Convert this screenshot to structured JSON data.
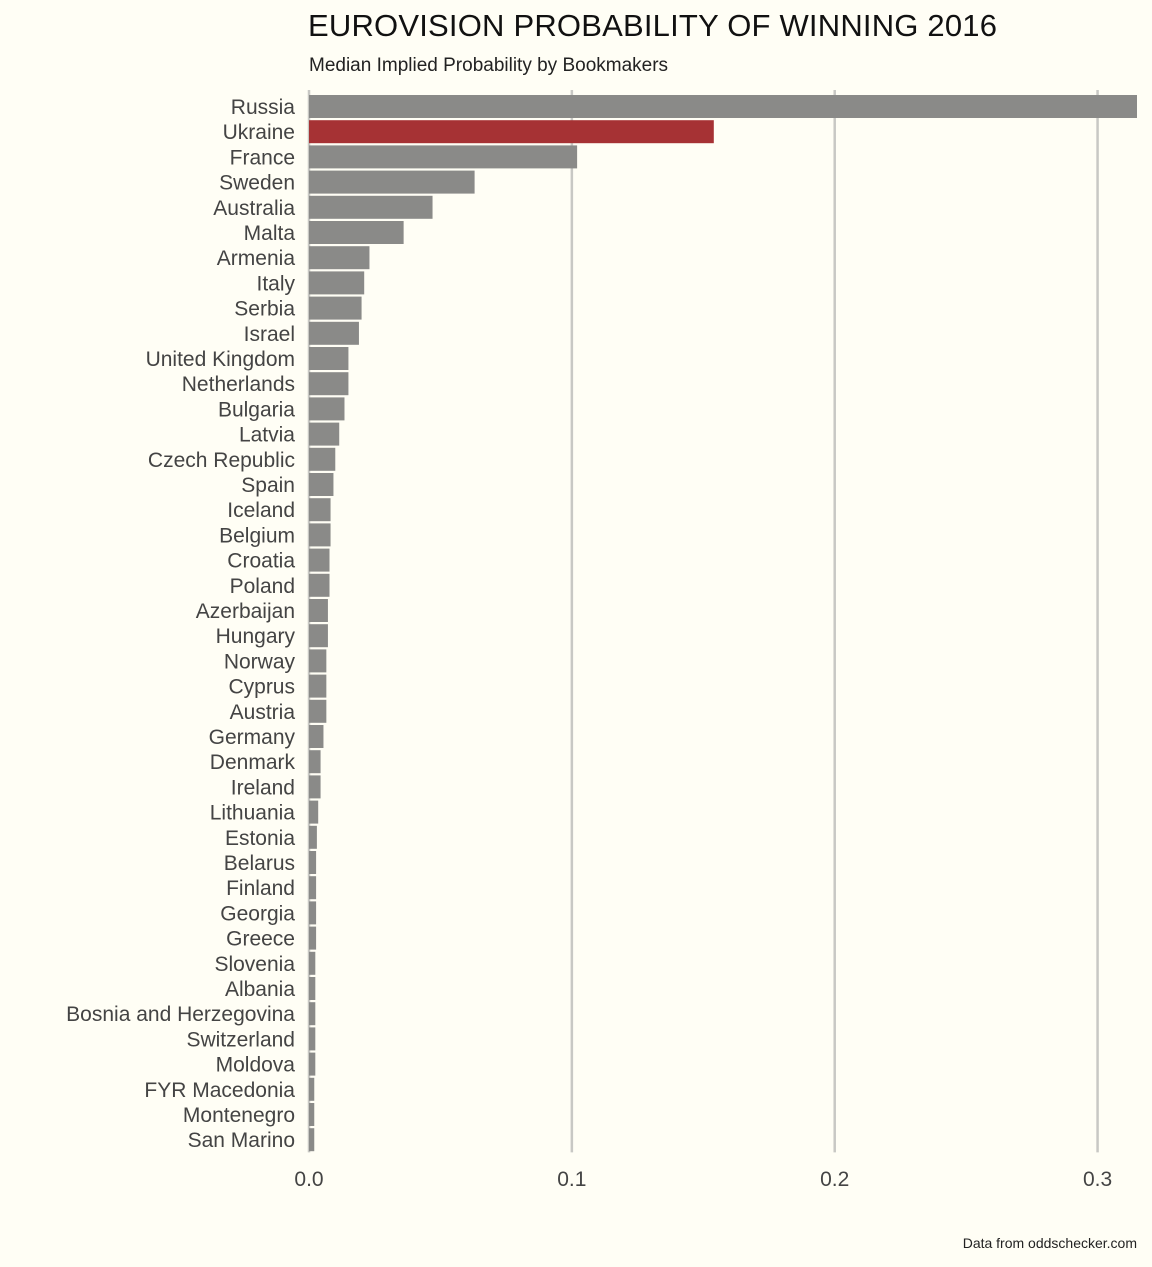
{
  "title": "EUROVISION PROBABILITY OF WINNING 2016",
  "subtitle": "Median Implied Probability by Bookmakers",
  "caption": "Data from oddschecker.com",
  "colors": {
    "background": "#fffef5",
    "bar": "#8a8a88",
    "highlight": "#a63234",
    "grid": "#c8c8c4"
  },
  "chart_data": {
    "type": "bar",
    "orientation": "horizontal",
    "title": "EUROVISION PROBABILITY OF WINNING 2016",
    "subtitle": "Median Implied Probability by Bookmakers",
    "xlabel": "",
    "ylabel": "",
    "xlim": [
      0,
      0.315
    ],
    "xticks": [
      "0.0",
      "0.1",
      "0.2",
      "0.3"
    ],
    "grid": "vertical",
    "highlighted_category": "Ukraine",
    "categories": [
      "Russia",
      "Ukraine",
      "France",
      "Sweden",
      "Australia",
      "Malta",
      "Armenia",
      "Italy",
      "Serbia",
      "Israel",
      "United Kingdom",
      "Netherlands",
      "Bulgaria",
      "Latvia",
      "Czech Republic",
      "Spain",
      "Iceland",
      "Belgium",
      "Croatia",
      "Poland",
      "Azerbaijan",
      "Hungary",
      "Norway",
      "Cyprus",
      "Austria",
      "Germany",
      "Denmark",
      "Ireland",
      "Lithuania",
      "Estonia",
      "Belarus",
      "Finland",
      "Georgia",
      "Greece",
      "Slovenia",
      "Albania",
      "Bosnia and Herzegovina",
      "Switzerland",
      "Moldova",
      "FYR Macedonia",
      "Montenegro",
      "San Marino"
    ],
    "values": [
      0.315,
      0.154,
      0.102,
      0.063,
      0.047,
      0.036,
      0.023,
      0.021,
      0.02,
      0.019,
      0.015,
      0.015,
      0.0135,
      0.0115,
      0.01,
      0.0093,
      0.0082,
      0.0082,
      0.0078,
      0.0078,
      0.0072,
      0.0072,
      0.0066,
      0.0066,
      0.0066,
      0.0055,
      0.0044,
      0.0044,
      0.0035,
      0.003,
      0.0027,
      0.0027,
      0.0027,
      0.0027,
      0.0024,
      0.0024,
      0.0024,
      0.0024,
      0.0024,
      0.002,
      0.002,
      0.002
    ]
  }
}
